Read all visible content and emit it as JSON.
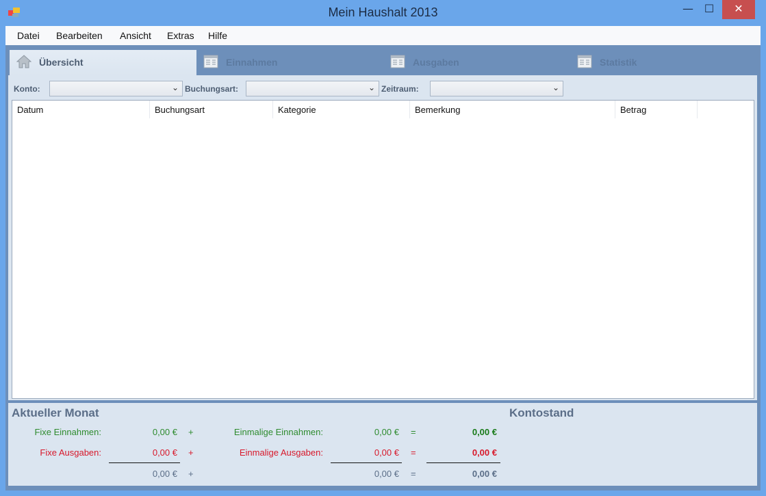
{
  "window": {
    "title": "Mein Haushalt 2013",
    "minimize": "—",
    "maximize": "☐",
    "close": "✕"
  },
  "menu": [
    "Datei",
    "Bearbeiten",
    "Ansicht",
    "Extras",
    "Hilfe"
  ],
  "tabs": [
    {
      "label": "Übersicht",
      "icon": "home-icon"
    },
    {
      "label": "Einnahmen",
      "icon": "table-icon"
    },
    {
      "label": "Ausgaben",
      "icon": "table-icon"
    },
    {
      "label": "Statistik",
      "icon": "table-icon"
    }
  ],
  "filters": {
    "konto": "Konto:",
    "buchungsart": "Buchungsart:",
    "zeitraum": "Zeitraum:"
  },
  "columns": [
    "Datum",
    "Buchungsart",
    "Kategorie",
    "Bemerkung",
    "Betrag"
  ],
  "summary": {
    "title": "Aktueller Monat",
    "kontostand": "Kontostand",
    "fixe_einnahmen_label": "Fixe Einnahmen:",
    "fixe_einnahmen": "0,00 €",
    "fixe_ausgaben_label": "Fixe Ausgaben:",
    "fixe_ausgaben": "0,00 €",
    "einmalige_einnahmen_label": "Einmalige Einnahmen:",
    "einmalige_einnahmen": "0,00 €",
    "einmalige_ausgaben_label": "Einmalige Ausgaben:",
    "einmalige_ausgaben": "0,00 €",
    "total_einnahmen": "0,00 €",
    "total_ausgaben": "0,00 €",
    "fixe_summe": "0,00 €",
    "einmalige_summe": "0,00 €",
    "gesamt": "0,00 €",
    "plus": "+",
    "equals": "="
  },
  "colors": {
    "income": "#2e8b2e",
    "expense": "#d8182a",
    "neutral": "#5b6e88"
  }
}
